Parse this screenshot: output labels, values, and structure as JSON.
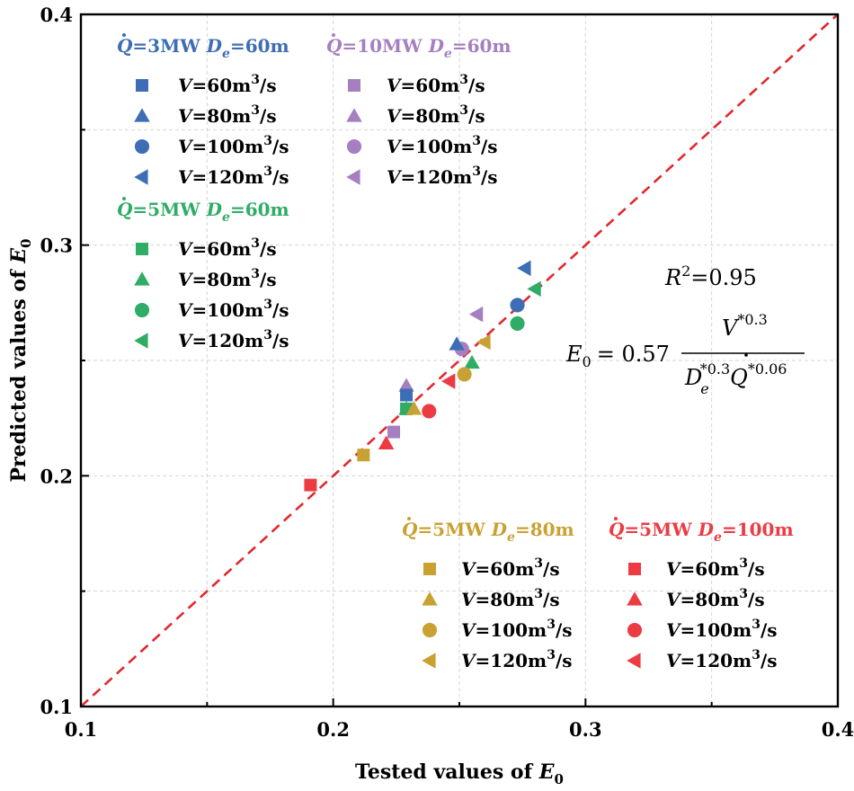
{
  "chart_data": {
    "type": "scatter",
    "xlabel": "Tested values of",
    "ylabel": "Predicted values of",
    "axis_symbol": "E",
    "axis_symbol_sub": "0",
    "xlim": [
      0.1,
      0.4
    ],
    "ylim": [
      0.1,
      0.4
    ],
    "xticks": [
      "0.1",
      "0.2",
      "0.3",
      "0.4"
    ],
    "yticks": [
      "0.1",
      "0.2",
      "0.3",
      "0.4"
    ],
    "grid": true,
    "reference_line": {
      "x": [
        0.1,
        0.4
      ],
      "y": [
        0.1,
        0.4
      ],
      "style": "dashed",
      "color": "#e0282e"
    },
    "annotation": {
      "r2": "R",
      "r2_sup": "2",
      "r2_value": "=0.95",
      "lhs": "E",
      "lhs_sub": "0",
      "eq": "= 0.57",
      "num": "V",
      "num_exp": "*0.3",
      "den1": "D",
      "den1_sub": "e",
      "den1_exp": "*0.3",
      "den2": "Q",
      "den2_exp": "*0.06"
    },
    "groups": [
      {
        "q_symbol": "Q",
        "q_value": "=5MW ",
        "d_symbol": "D",
        "d_sub": "e",
        "d_value": "=60m",
        "color": "#2fac66",
        "series": [
          {
            "label": "V=60m³/s",
            "marker": "square",
            "points": [
              [
                0.229,
                0.229
              ]
            ]
          },
          {
            "label": "V=80m³/s",
            "marker": "triangle",
            "points": [
              [
                0.229,
                0.229
              ],
              [
                0.255,
                0.249
              ]
            ]
          },
          {
            "label": "V=100m³/s",
            "marker": "circle",
            "points": [
              [
                0.273,
                0.266
              ]
            ]
          },
          {
            "label": "V=120m³/s",
            "marker": "left-triangle",
            "points": [
              [
                0.28,
                0.281
              ]
            ]
          }
        ]
      },
      {
        "q_symbol": "Q",
        "q_value": "=5MW ",
        "d_symbol": "D",
        "d_sub": "e",
        "d_value": "=80m",
        "color": "#c9a132",
        "series": [
          {
            "label": "V=60m³/s",
            "marker": "square",
            "points": [
              [
                0.212,
                0.209
              ]
            ]
          },
          {
            "label": "V=80m³/s",
            "marker": "triangle",
            "points": [
              [
                0.232,
                0.229
              ]
            ]
          },
          {
            "label": "V=100m³/s",
            "marker": "circle",
            "points": [
              [
                0.252,
                0.244
              ]
            ]
          },
          {
            "label": "V=120m³/s",
            "marker": "left-triangle",
            "points": [
              [
                0.26,
                0.258
              ]
            ]
          }
        ]
      },
      {
        "q_symbol": "Q",
        "q_value": "=5MW ",
        "d_symbol": "D",
        "d_sub": "e",
        "d_value": "=100m",
        "color": "#ec3b43",
        "series": [
          {
            "label": "V=60m³/s",
            "marker": "square",
            "points": [
              [
                0.191,
                0.196
              ]
            ]
          },
          {
            "label": "V=80m³/s",
            "marker": "triangle",
            "points": [
              [
                0.221,
                0.214
              ]
            ]
          },
          {
            "label": "V=100m³/s",
            "marker": "circle",
            "points": [
              [
                0.238,
                0.228
              ]
            ]
          },
          {
            "label": "V=120m³/s",
            "marker": "left-triangle",
            "points": [
              [
                0.246,
                0.241
              ]
            ]
          }
        ]
      },
      {
        "q_symbol": "Q",
        "q_value": "=10MW ",
        "d_symbol": "D",
        "d_sub": "e",
        "d_value": "=60m",
        "color": "#a57fc0",
        "series": [
          {
            "label": "V=60m³/s",
            "marker": "square",
            "points": [
              [
                0.224,
                0.219
              ]
            ]
          },
          {
            "label": "V=80m³/s",
            "marker": "triangle",
            "points": [
              [
                0.229,
                0.239
              ]
            ]
          },
          {
            "label": "V=100m³/s",
            "marker": "circle",
            "points": [
              [
                0.251,
                0.255
              ]
            ]
          },
          {
            "label": "V=120m³/s",
            "marker": "left-triangle",
            "points": [
              [
                0.257,
                0.27
              ]
            ]
          }
        ]
      },
      {
        "q_symbol": "Q",
        "q_value": "=3MW ",
        "d_symbol": "D",
        "d_sub": "e",
        "d_value": "=60m",
        "color": "#3d6db4",
        "series": [
          {
            "label": "V=60m³/s",
            "marker": "square",
            "points": [
              [
                0.229,
                0.235
              ]
            ]
          },
          {
            "label": "V=80m³/s",
            "marker": "triangle",
            "points": [
              [
                0.249,
                0.257
              ]
            ]
          },
          {
            "label": "V=100m³/s",
            "marker": "circle",
            "points": [
              [
                0.273,
                0.274
              ]
            ]
          },
          {
            "label": "V=120m³/s",
            "marker": "left-triangle",
            "points": [
              [
                0.276,
                0.29
              ]
            ]
          }
        ]
      }
    ]
  }
}
